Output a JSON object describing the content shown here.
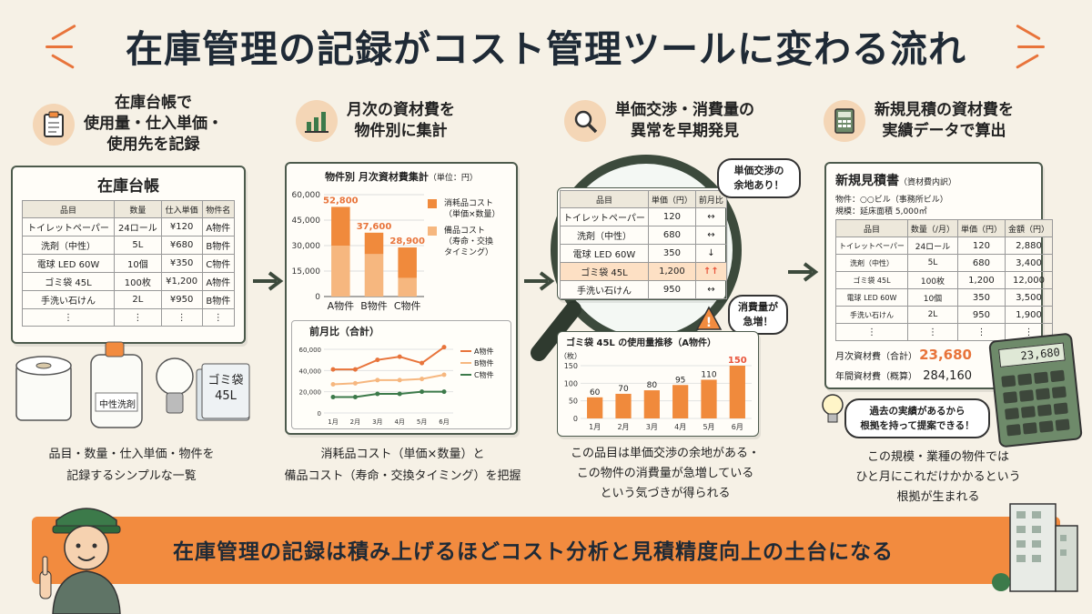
{
  "title": "在庫管理の記録がコスト管理ツールに変わる流れ",
  "steps": [
    {
      "title_lines": [
        "在庫台帳で",
        "使用量・仕入単価・",
        "使用先を記録"
      ],
      "icon": "clipboard-icon"
    },
    {
      "title_lines": [
        "月次の資材費を",
        "物件別に集計"
      ],
      "icon": "bar-chart-icon"
    },
    {
      "title_lines": [
        "単価交渉・消費量の",
        "異常を早期発見"
      ],
      "icon": "magnifier-icon"
    },
    {
      "title_lines": [
        "新規見積の資材費を",
        "実績データで算出"
      ],
      "icon": "calculator-icon"
    }
  ],
  "ledger": {
    "title": "在庫台帳",
    "headers": [
      "品目",
      "数量",
      "仕入単価",
      "物件名"
    ],
    "rows": [
      [
        "トイレットペーパー",
        "24ロール",
        "¥120",
        "A物件"
      ],
      [
        "洗剤（中性）",
        "5L",
        "¥680",
        "B物件"
      ],
      [
        "電球 LED 60W",
        "10個",
        "¥350",
        "C物件"
      ],
      [
        "ゴミ袋 45L",
        "100枚",
        "¥1,200",
        "A物件"
      ],
      [
        "手洗い石けん",
        "2L",
        "¥950",
        "B物件"
      ],
      [
        "⋮",
        "⋮",
        "⋮",
        "⋮"
      ]
    ],
    "detergent_label": "中性洗剤",
    "bag_label": [
      "ゴミ袋",
      "45L"
    ]
  },
  "captions": [
    [
      "品目・数量・仕入単価・物件を",
      "記録するシンプルな一覧"
    ],
    [
      "消耗品コスト（単価×数量）と",
      "備品コスト（寿命・交換タイミング）を把握"
    ],
    [
      "この品目は単価交渉の余地がある・",
      "この物件の消費量が急増している",
      "という気づきが得られる"
    ],
    [
      "この規模・業種の物件では",
      "ひと月にこれだけかかるという",
      "根拠が生まれる"
    ]
  ],
  "chart_data": [
    {
      "type": "bar",
      "title": "物件別 月次資材費集計",
      "unit": "（単位：円）",
      "categories": [
        "A物件",
        "B物件",
        "C物件"
      ],
      "series": [
        {
          "name": "消耗品コスト（単価×数量）",
          "values": [
            30000,
            25000,
            11000
          ]
        },
        {
          "name": "備品コスト（寿命・交換タイミング）",
          "values": [
            22800,
            12600,
            17900
          ]
        }
      ],
      "totals": [
        "52,800",
        "37,600",
        "28,900"
      ],
      "ylim": [
        0,
        60000
      ],
      "yticks": [
        "0",
        "15,000",
        "30,000",
        "45,000",
        "60,000"
      ]
    },
    {
      "type": "line",
      "title": "前月比（合計）",
      "x": [
        "1月",
        "2月",
        "3月",
        "4月",
        "5月",
        "6月"
      ],
      "series": [
        {
          "name": "A物件",
          "values": [
            41000,
            41000,
            50000,
            53000,
            47000,
            62000
          ]
        },
        {
          "name": "B物件",
          "values": [
            27000,
            28000,
            31000,
            31000,
            32000,
            36000
          ]
        },
        {
          "name": "C物件",
          "values": [
            15000,
            15000,
            18000,
            18000,
            20000,
            20000
          ]
        }
      ],
      "ylim": [
        0,
        60000
      ],
      "yticks": [
        "0",
        "20,000",
        "40,000",
        "60,000"
      ]
    },
    {
      "type": "bar",
      "title": "ゴミ袋 45L の使用量推移（A物件）",
      "ylabel": "（枚）",
      "x": [
        "1月",
        "2月",
        "3月",
        "4月",
        "5月",
        "6月"
      ],
      "values": [
        60,
        70,
        80,
        95,
        110,
        150
      ],
      "labels": [
        "60",
        "70",
        "80",
        "95",
        "110",
        "150"
      ],
      "ylim": [
        0,
        150
      ],
      "yticks": [
        "0",
        "50",
        "100",
        "150"
      ]
    }
  ],
  "chart_legend": {
    "consumable": [
      "消耗品コスト",
      "（単価×数量）"
    ],
    "equipment": [
      "備品コスト",
      "（寿命・交換",
      "タイミング）"
    ]
  },
  "price_table": {
    "headers": [
      "品目",
      "単価（円）",
      "前月比"
    ],
    "rows": [
      [
        "トイレットペーパー",
        "120",
        "↔"
      ],
      [
        "洗剤（中性）",
        "680",
        "↔"
      ],
      [
        "電球 LED 60W",
        "350",
        "↓"
      ],
      [
        "ゴミ袋 45L",
        "1,200",
        "↑↑"
      ],
      [
        "手洗い石けん",
        "950",
        "↔"
      ]
    ]
  },
  "bubbles": {
    "negotiate": [
      "単価交渉の",
      "余地あり！"
    ],
    "surge": [
      "消費量が",
      "急増！"
    ],
    "idea": [
      "過去の実績があるから",
      "根拠を持って提案できる！"
    ]
  },
  "estimate": {
    "title": "新規見積書",
    "subtitle": "（資材費内訳）",
    "property": "物件：○○ビル（事務所ビル）",
    "scale": "規模：延床面積 5,000㎡",
    "headers": [
      "品目",
      "数量（/月）",
      "単価（円）",
      "金額（円）"
    ],
    "rows": [
      [
        "トイレットペーパー",
        "24ロール",
        "120",
        "2,880"
      ],
      [
        "洗剤（中性）",
        "5L",
        "680",
        "3,400"
      ],
      [
        "ゴミ袋 45L",
        "100枚",
        "1,200",
        "12,000"
      ],
      [
        "電球 LED 60W",
        "10個",
        "350",
        "3,500"
      ],
      [
        "手洗い石けん",
        "2L",
        "950",
        "1,900"
      ],
      [
        "⋮",
        "⋮",
        "⋮",
        "⋮"
      ]
    ],
    "monthly_label": "月次資材費（合計）",
    "monthly_value": "23,680",
    "annual_label": "年間資材費（概算）",
    "annual_value": "284,160"
  },
  "calculator_display": "23,680",
  "banner": "在庫管理の記録は積み上げるほどコスト分析と見積精度向上の土台になる",
  "colors": {
    "orange": "#f28b3f",
    "dark_orange": "#e8743b",
    "light_orange": "#f6b77f",
    "green": "#3c7a4a",
    "frame": "#4c5a4c"
  }
}
